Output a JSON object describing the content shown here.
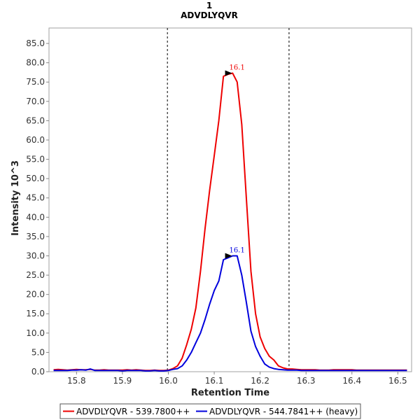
{
  "chart_data": {
    "type": "line",
    "title": "1",
    "subtitle": "ADVDLYQVR",
    "xlabel": "Retention Time",
    "ylabel": "Intensity 10^3",
    "xlim": [
      15.74,
      16.53
    ],
    "ylim": [
      0,
      89
    ],
    "x_ticks": [
      "15.8",
      "15.9",
      "16.0",
      "16.1",
      "16.2",
      "16.3",
      "16.4",
      "16.5"
    ],
    "y_ticks": [
      "0.0",
      "5.0",
      "10.0",
      "15.0",
      "20.0",
      "25.0",
      "30.0",
      "35.0",
      "40.0",
      "45.0",
      "50.0",
      "55.0",
      "60.0",
      "65.0",
      "70.0",
      "75.0",
      "80.0",
      "85.0"
    ],
    "integration_bounds": [
      15.998,
      16.263
    ],
    "series": [
      {
        "name": "ADVDLYQVR - 539.7800++",
        "color": "#ee0000",
        "peak": {
          "x": 16.145,
          "y": 77.3,
          "label": "16.1"
        },
        "x": [
          15.75,
          15.76,
          15.77,
          15.78,
          15.79,
          15.8,
          15.81,
          15.82,
          15.83,
          15.84,
          15.85,
          15.86,
          15.87,
          15.88,
          15.89,
          15.9,
          15.91,
          15.92,
          15.93,
          15.94,
          15.95,
          15.96,
          15.97,
          15.98,
          15.99,
          16.0,
          16.01,
          16.02,
          16.03,
          16.04,
          16.05,
          16.06,
          16.07,
          16.08,
          16.09,
          16.1,
          16.11,
          16.12,
          16.13,
          16.14,
          16.15,
          16.16,
          16.17,
          16.18,
          16.19,
          16.2,
          16.21,
          16.22,
          16.23,
          16.24,
          16.25,
          16.26,
          16.27,
          16.28,
          16.29,
          16.3,
          16.31,
          16.32,
          16.33,
          16.34,
          16.35,
          16.36,
          16.37,
          16.38,
          16.39,
          16.4,
          16.41,
          16.42,
          16.43,
          16.44,
          16.45,
          16.46,
          16.47,
          16.48,
          16.49,
          16.5,
          16.51,
          16.52
        ],
        "values": [
          0.5,
          0.6,
          0.5,
          0.4,
          0.5,
          0.6,
          0.5,
          0.5,
          0.6,
          0.4,
          0.4,
          0.5,
          0.4,
          0.4,
          0.4,
          0.4,
          0.5,
          0.4,
          0.5,
          0.4,
          0.3,
          0.3,
          0.4,
          0.3,
          0.3,
          0.4,
          0.8,
          1.5,
          3.5,
          7,
          11,
          16.5,
          26,
          37,
          47,
          56,
          65,
          76.5,
          77,
          77.3,
          75,
          64,
          45,
          26,
          15,
          9,
          6,
          4,
          3,
          1.5,
          1.0,
          0.7,
          0.7,
          0.6,
          0.5,
          0.5,
          0.5,
          0.5,
          0.4,
          0.4,
          0.4,
          0.5,
          0.5,
          0.5,
          0.5,
          0.5,
          0.4,
          0.4,
          0.4,
          0.4,
          0.4,
          0.4,
          0.4,
          0.4,
          0.4,
          0.4,
          0.4,
          0.4
        ]
      },
      {
        "name": "ADVDLYQVR - 544.7841++ (heavy)",
        "color": "#0000dd",
        "peak": {
          "x": 16.145,
          "y": 30.0,
          "label": "16.1"
        },
        "x": [
          15.75,
          15.76,
          15.77,
          15.78,
          15.79,
          15.8,
          15.81,
          15.82,
          15.83,
          15.84,
          15.85,
          15.86,
          15.87,
          15.88,
          15.89,
          15.9,
          15.91,
          15.92,
          15.93,
          15.94,
          15.95,
          15.96,
          15.97,
          15.98,
          15.99,
          16.0,
          16.01,
          16.02,
          16.03,
          16.04,
          16.05,
          16.06,
          16.07,
          16.08,
          16.09,
          16.1,
          16.11,
          16.12,
          16.13,
          16.14,
          16.15,
          16.16,
          16.17,
          16.18,
          16.19,
          16.2,
          16.21,
          16.22,
          16.23,
          16.24,
          16.25,
          16.26,
          16.27,
          16.28,
          16.29,
          16.3,
          16.31,
          16.32,
          16.33,
          16.34,
          16.35,
          16.36,
          16.37,
          16.38,
          16.39,
          16.4,
          16.41,
          16.42,
          16.43,
          16.44,
          16.45,
          16.46,
          16.47,
          16.48,
          16.49,
          16.5,
          16.51,
          16.52
        ],
        "values": [
          0.3,
          0.3,
          0.3,
          0.3,
          0.4,
          0.4,
          0.5,
          0.4,
          0.7,
          0.3,
          0.3,
          0.3,
          0.3,
          0.3,
          0.3,
          0.2,
          0.3,
          0.3,
          0.3,
          0.3,
          0.2,
          0.2,
          0.3,
          0.2,
          0.2,
          0.3,
          0.6,
          0.8,
          1.5,
          3,
          5,
          7.5,
          10,
          13.5,
          17.5,
          21,
          23.5,
          29,
          29.5,
          30,
          30,
          25,
          18,
          10.5,
          6.5,
          4,
          2,
          1.2,
          0.8,
          0.6,
          0.5,
          0.4,
          0.4,
          0.4,
          0.3,
          0.3,
          0.3,
          0.3,
          0.3,
          0.3,
          0.3,
          0.3,
          0.3,
          0.3,
          0.3,
          0.3,
          0.3,
          0.3,
          0.3,
          0.3,
          0.3,
          0.3,
          0.3,
          0.3,
          0.3,
          0.3,
          0.3,
          0.3
        ]
      }
    ],
    "legend_position": "bottom"
  }
}
